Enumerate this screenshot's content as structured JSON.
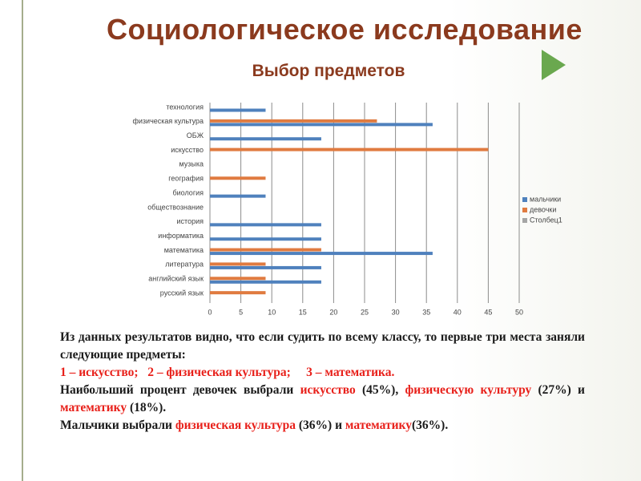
{
  "title": "Социологическое исследование",
  "subtitle": "Выбор предметов",
  "chart_data": {
    "type": "hbar",
    "categories": [
      "технология",
      "физическая культура",
      "ОБЖ",
      "искусство",
      "музыка",
      "география",
      "биология",
      "обществознание",
      "история",
      "информатика",
      "математика",
      "литература",
      "английский язык",
      "русский язык"
    ],
    "series": [
      {
        "name": "мальчики",
        "color": "#4f81bd",
        "values": [
          9,
          36,
          18,
          null,
          null,
          null,
          9,
          null,
          18,
          18,
          36,
          18,
          18,
          null
        ]
      },
      {
        "name": "девочки",
        "color": "#e07b40",
        "values": [
          null,
          27,
          null,
          45,
          null,
          9,
          null,
          null,
          null,
          null,
          18,
          9,
          9,
          9
        ]
      },
      {
        "name": "Столбец1",
        "color": "#a5a5a5",
        "values": [
          null,
          null,
          null,
          null,
          null,
          null,
          null,
          null,
          null,
          null,
          null,
          null,
          null,
          null
        ]
      }
    ],
    "xlim": [
      0,
      50
    ],
    "xticks": [
      0,
      5,
      10,
      15,
      20,
      25,
      30,
      35,
      40,
      45,
      50
    ],
    "grid": true,
    "legend": "right"
  },
  "paragraphs": [
    [
      {
        "text": "Из данных результатов видно, что если судить по всему классу, то первые три места заняли следующие предметы:",
        "color": "#1a1a1a"
      }
    ],
    [
      {
        "text": "1 – искусство;   2 – физическая культура;     3 – математика.",
        "color": "#e8201a"
      }
    ],
    [
      {
        "text": "Наибольший процент девочек выбрали ",
        "color": "#1a1a1a"
      },
      {
        "text": "искусство",
        "color": "#e8201a"
      },
      {
        "text": " (45%), ",
        "color": "#1a1a1a"
      },
      {
        "text": "физическую культуру",
        "color": "#e8201a"
      },
      {
        "text": " (27%) и ",
        "color": "#1a1a1a"
      },
      {
        "text": "математику",
        "color": "#e8201a"
      },
      {
        "text": " (18%).",
        "color": "#1a1a1a"
      }
    ],
    [
      {
        "text": "Мальчики выбрали ",
        "color": "#1a1a1a"
      },
      {
        "text": "физическая культура",
        "color": "#e8201a"
      },
      {
        "text": " (36%) и ",
        "color": "#1a1a1a"
      },
      {
        "text": "математику",
        "color": "#e8201a"
      },
      {
        "text": "(36%).",
        "color": "#1a1a1a"
      }
    ]
  ]
}
